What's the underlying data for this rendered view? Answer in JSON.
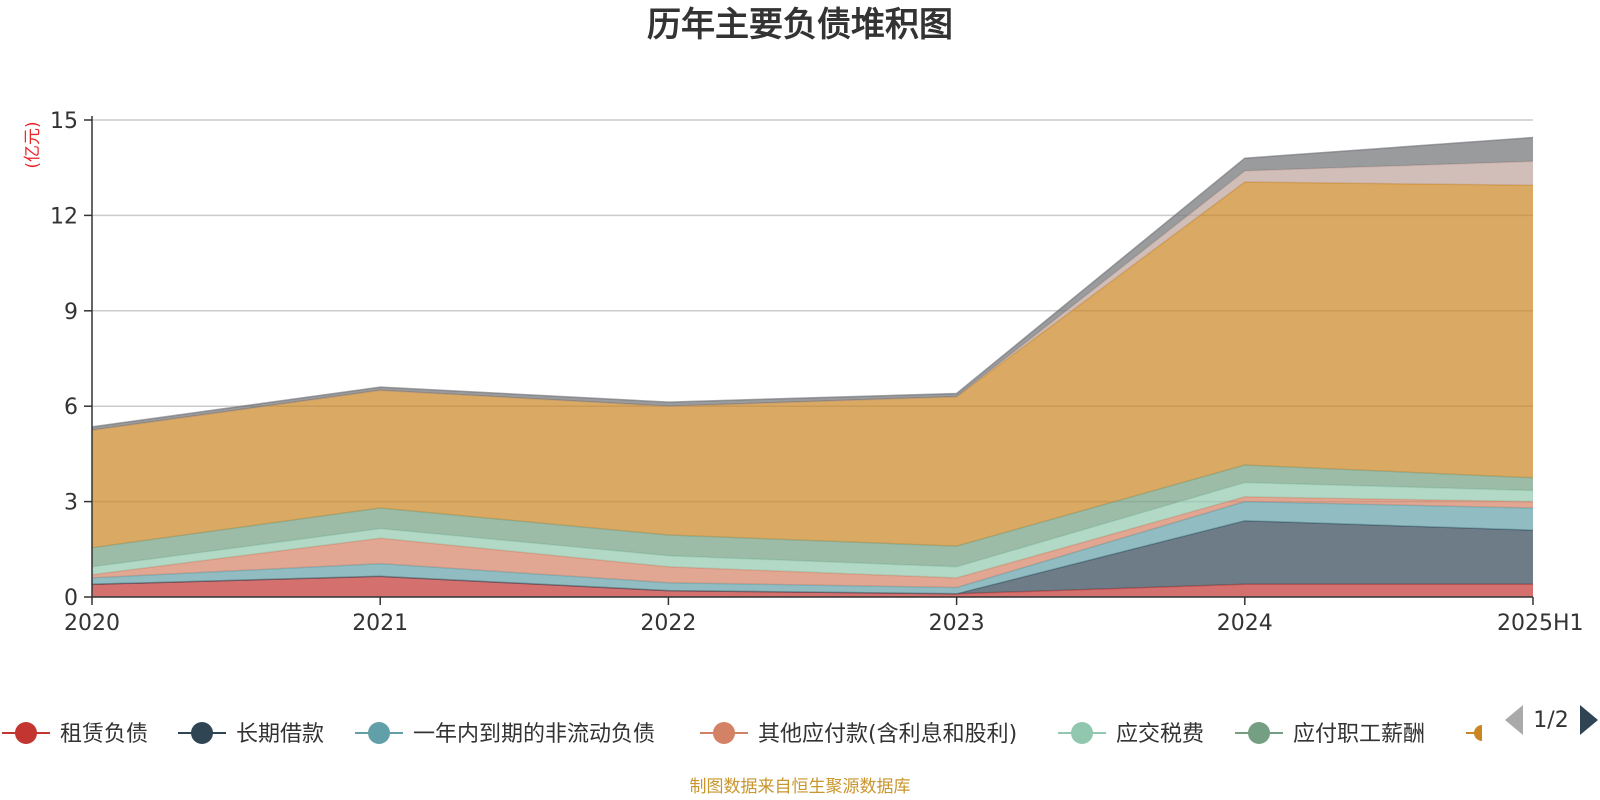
{
  "chart_data": {
    "type": "area",
    "stacked": true,
    "title": "历年主要负债堆积图",
    "ylabel": "(亿元)",
    "ylim": [
      0,
      15
    ],
    "yticks": [
      "0",
      "3",
      "6",
      "9",
      "12",
      "15"
    ],
    "categories": [
      "2020",
      "2021",
      "2022",
      "2023",
      "2024",
      "2025H1"
    ],
    "grid": true,
    "series": [
      {
        "name": "租赁负债",
        "color": "#c23531",
        "values": [
          0.4,
          0.65,
          0.2,
          0.1,
          0.4,
          0.4
        ]
      },
      {
        "name": "长期借款",
        "color": "#2f4554",
        "values": [
          0.0,
          0.0,
          0.0,
          0.0,
          2.0,
          1.7
        ]
      },
      {
        "name": "一年内到期的非流动负债",
        "color": "#61a0a8",
        "values": [
          0.2,
          0.4,
          0.25,
          0.2,
          0.6,
          0.7
        ]
      },
      {
        "name": "其他应付款(含利息和股利)",
        "color": "#d48265",
        "values": [
          0.1,
          0.8,
          0.5,
          0.3,
          0.15,
          0.2
        ]
      },
      {
        "name": "应交税费",
        "color": "#91c7ae",
        "values": [
          0.25,
          0.3,
          0.35,
          0.35,
          0.45,
          0.35
        ]
      },
      {
        "name": "应付职工薪酬",
        "color": "#749f83",
        "values": [
          0.6,
          0.65,
          0.65,
          0.65,
          0.55,
          0.4
        ]
      },
      {
        "name": "",
        "color": "#ca8622",
        "values": [
          3.7,
          3.7,
          4.05,
          4.7,
          8.9,
          9.2
        ]
      },
      {
        "name": "",
        "color": "#bda29a",
        "values": [
          0.0,
          0.0,
          0.0,
          0.0,
          0.35,
          0.75
        ]
      },
      {
        "name": "",
        "color": "#6e7074",
        "values": [
          0.1,
          0.1,
          0.13,
          0.1,
          0.4,
          0.75
        ]
      }
    ],
    "legend_position": "bottom",
    "legend_page": "1/2",
    "source_note": "制图数据来自恒生聚源数据库"
  }
}
